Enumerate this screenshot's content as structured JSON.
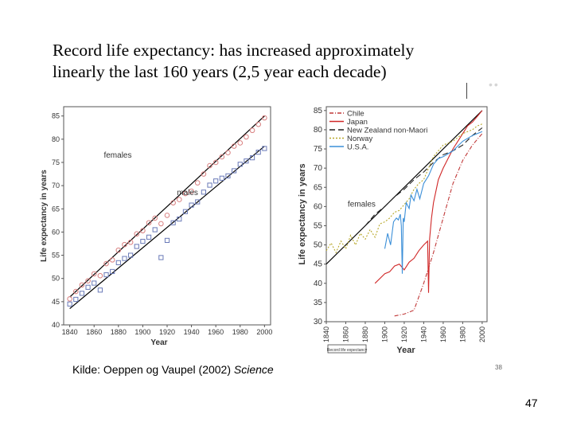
{
  "slide": {
    "title_line1": "Record life expectancy: has increased approximately",
    "title_line2": "linearly the last 160 years (2,5 year each decade)",
    "source_prefix": "Kilde: Oeppen og Vaupel (2002) ",
    "source_journal": "Science",
    "page_number": "47",
    "inner_page_number": "38",
    "small_label": "Record life expectancy"
  },
  "chart_data": [
    {
      "type": "scatter",
      "xlabel": "Year",
      "ylabel": "Life expectancy in years",
      "xlim": [
        1835,
        2005
      ],
      "ylim": [
        40,
        87
      ],
      "xticks": [
        1840,
        1860,
        1880,
        1900,
        1920,
        1940,
        1960,
        1980,
        2000
      ],
      "yticks": [
        40,
        45,
        50,
        55,
        60,
        65,
        70,
        75,
        80,
        85
      ],
      "annotations": [
        {
          "text": "females",
          "x": 1868,
          "y": 76
        },
        {
          "text": "males",
          "x": 1928,
          "y": 68
        }
      ],
      "series": [
        {
          "color": "#d98080",
          "marker": "circle",
          "x": [
            1840,
            1845,
            1850,
            1855,
            1860,
            1865,
            1870,
            1875,
            1880,
            1885,
            1890,
            1895,
            1900,
            1905,
            1910,
            1915,
            1920,
            1925,
            1930,
            1935,
            1940,
            1945,
            1950,
            1955,
            1960,
            1965,
            1970,
            1975,
            1980,
            1985,
            1990,
            1995,
            2000
          ],
          "y": [
            45.6,
            47.2,
            48.6,
            49.5,
            51.0,
            50.6,
            53.2,
            54.0,
            56.1,
            57.3,
            57.8,
            59.6,
            60.3,
            62.0,
            63.0,
            61.8,
            63.6,
            66.3,
            67.0,
            68.3,
            68.8,
            70.6,
            72.5,
            74.3,
            75.0,
            76.2,
            77.1,
            78.5,
            79.2,
            80.5,
            81.9,
            83.2,
            84.6
          ]
        },
        {
          "color": "#6a7ab8",
          "marker": "square",
          "x": [
            1840,
            1845,
            1850,
            1855,
            1860,
            1865,
            1870,
            1875,
            1880,
            1885,
            1890,
            1895,
            1900,
            1905,
            1910,
            1915,
            1920,
            1925,
            1930,
            1935,
            1940,
            1945,
            1950,
            1955,
            1960,
            1965,
            1970,
            1975,
            1980,
            1985,
            1990,
            1995,
            2000
          ],
          "y": [
            44.5,
            45.5,
            46.8,
            48.1,
            49.0,
            47.5,
            50.8,
            51.5,
            53.4,
            54.3,
            55.0,
            56.9,
            58.0,
            58.9,
            60.5,
            54.5,
            58.2,
            62.0,
            62.8,
            64.4,
            65.8,
            66.5,
            68.6,
            70.1,
            71.0,
            71.6,
            72.1,
            73.2,
            74.6,
            75.3,
            76.0,
            77.2,
            78.0
          ]
        }
      ],
      "trend_lines": [
        {
          "color": "#000000",
          "x": [
            1840,
            2000
          ],
          "y": [
            46.0,
            85.0
          ]
        },
        {
          "color": "#000000",
          "x": [
            1840,
            2000
          ],
          "y": [
            43.5,
            78.5
          ]
        }
      ]
    },
    {
      "type": "line",
      "xlabel": "Year",
      "ylabel": "Life expectancy in years",
      "xlim": [
        1840,
        2005
      ],
      "ylim": [
        30,
        86
      ],
      "xticks": [
        1840,
        1860,
        1880,
        1900,
        1920,
        1940,
        1960,
        1980,
        2000
      ],
      "yticks": [
        30,
        35,
        40,
        45,
        50,
        55,
        60,
        65,
        70,
        75,
        80,
        85
      ],
      "annotation": {
        "text": "females",
        "x": 1862,
        "y": 60
      },
      "legend_position": "top-right",
      "series": [
        {
          "name": "Chile",
          "color": "#c03838",
          "dash": "5 2 1 2",
          "x": [
            1910,
            1920,
            1930,
            1940,
            1950,
            1960,
            1970,
            1980,
            1990,
            2000
          ],
          "y": [
            31.5,
            32.0,
            33.0,
            40.0,
            48.0,
            57.0,
            66.0,
            72.0,
            76.0,
            79.0
          ]
        },
        {
          "name": "Japan",
          "color": "#d02828",
          "dash": "",
          "x": [
            1890,
            1900,
            1905,
            1910,
            1915,
            1920,
            1925,
            1930,
            1935,
            1940,
            1944,
            1945,
            1946,
            1948,
            1950,
            1955,
            1960,
            1965,
            1970,
            1975,
            1980,
            1985,
            1990,
            1995,
            2000
          ],
          "y": [
            40.0,
            42.5,
            43.0,
            44.5,
            45.0,
            43.5,
            45.5,
            46.5,
            48.5,
            50.0,
            51.0,
            37.5,
            51.5,
            57.0,
            61.0,
            67.0,
            70.0,
            72.5,
            75.0,
            77.0,
            79.0,
            81.0,
            82.0,
            83.5,
            85.0
          ]
        },
        {
          "name": "New Zealand non-Maori",
          "color": "#202020",
          "dash": "7 4",
          "x": [
            1880,
            1890,
            1900,
            1910,
            1920,
            1930,
            1940,
            1950,
            1960,
            1970,
            1980,
            1990,
            2000
          ],
          "y": [
            55.0,
            58.0,
            60.0,
            62.5,
            64.5,
            67.0,
            69.0,
            71.5,
            73.5,
            74.5,
            76.0,
            78.5,
            80.5
          ]
        },
        {
          "name": "Norway",
          "color": "#b8a82a",
          "dash": "2 2",
          "x": [
            1840,
            1845,
            1850,
            1855,
            1860,
            1865,
            1870,
            1875,
            1880,
            1885,
            1890,
            1895,
            1900,
            1905,
            1910,
            1915,
            1920,
            1925,
            1930,
            1935,
            1940,
            1945,
            1950,
            1955,
            1960,
            1965,
            1970,
            1975,
            1980,
            1985,
            1990,
            1995,
            2000
          ],
          "y": [
            48.5,
            50.5,
            48.0,
            51.0,
            49.0,
            52.5,
            50.0,
            53.0,
            51.5,
            54.0,
            52.0,
            55.5,
            56.0,
            57.0,
            58.5,
            59.0,
            60.5,
            62.0,
            64.5,
            66.0,
            67.0,
            70.0,
            73.0,
            74.5,
            76.0,
            76.5,
            77.0,
            78.0,
            79.0,
            79.5,
            80.0,
            81.0,
            81.5
          ]
        },
        {
          "name": "U.S.A.",
          "color": "#3b8fd8",
          "dash": "",
          "x": [
            1900,
            1903,
            1906,
            1909,
            1912,
            1914,
            1916,
            1917,
            1918,
            1919,
            1920,
            1922,
            1925,
            1927,
            1930,
            1933,
            1936,
            1940,
            1945,
            1950,
            1955,
            1960,
            1970,
            1980,
            1990,
            2000
          ],
          "y": [
            49.0,
            53.0,
            50.0,
            56.0,
            57.0,
            56.5,
            58.0,
            55.0,
            42.5,
            57.0,
            56.0,
            61.0,
            59.5,
            63.0,
            61.5,
            64.5,
            62.0,
            66.0,
            68.0,
            71.0,
            72.5,
            73.0,
            74.5,
            77.0,
            78.5,
            79.5
          ]
        }
      ],
      "trend_line": {
        "color": "#000000",
        "x": [
          1840,
          2000
        ],
        "y": [
          45.0,
          85.0
        ]
      }
    }
  ]
}
